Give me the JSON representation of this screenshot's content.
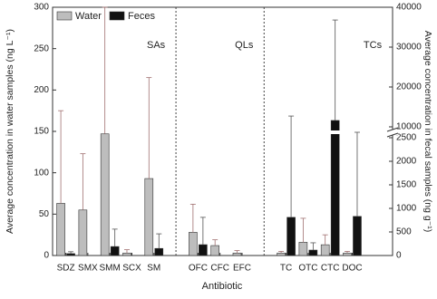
{
  "chart_data": {
    "type": "bar",
    "x_label": "Antibiotic",
    "y_label": "Average concentration in water samples (ng L⁻¹)",
    "y2_label": "Average concentration in fecal samples (ng g⁻¹)",
    "annotations": [
      "SAs",
      "QLs",
      "TCs"
    ],
    "categories": [
      "SDZ",
      "SMX",
      "SMM",
      "SCX",
      "SM",
      null,
      "OFC",
      "CFC",
      "EFC",
      null,
      "TC",
      "OTC",
      "CTC",
      "DOC"
    ],
    "series": [
      {
        "name": "Water",
        "color": "#bdbdbd",
        "values": [
          63,
          55,
          147,
          3,
          93,
          null,
          28,
          12,
          3,
          null,
          3,
          16,
          13,
          3
        ],
        "errors": [
          112,
          68,
          153,
          4,
          122,
          null,
          34,
          7,
          3,
          null,
          2,
          29,
          12,
          2
        ]
      },
      {
        "name": "Feces",
        "color": "#111111",
        "axis": "y2",
        "values": [
          40,
          null,
          190,
          null,
          150,
          null,
          230,
          null,
          null,
          null,
          810,
          115,
          11600,
          830
        ],
        "errors": [
          40,
          null,
          370,
          null,
          310,
          null,
          580,
          null,
          null,
          null,
          11900,
          155,
          25200,
          1720
        ]
      }
    ],
    "ylim": [
      0,
      300
    ],
    "yticks": [
      0,
      50,
      100,
      150,
      200,
      250,
      300
    ],
    "y2lim": [
      0,
      40000
    ],
    "y2break": [
      2500,
      10000
    ],
    "y2ticks": [
      0,
      500,
      1000,
      1500,
      2000,
      2500,
      10000,
      20000,
      30000,
      40000
    ],
    "legend": "top-left"
  }
}
